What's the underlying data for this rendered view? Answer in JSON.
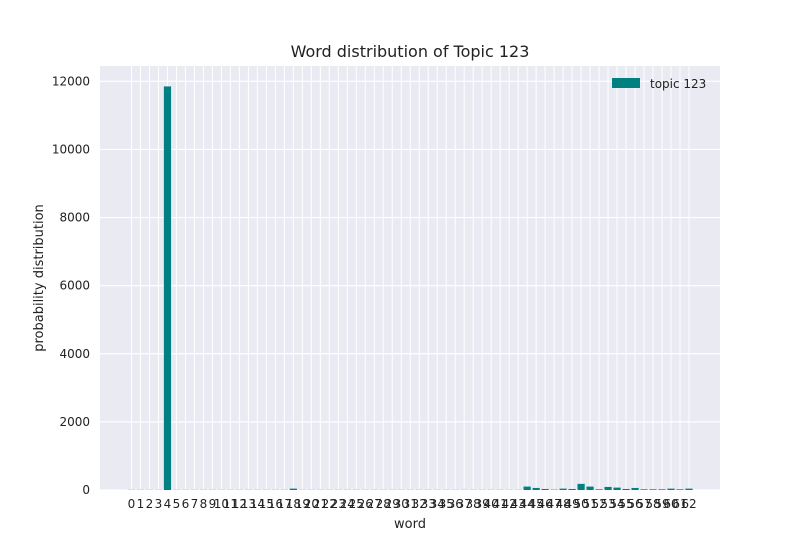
{
  "chart_data": {
    "type": "bar",
    "title": "Word distribution of Topic 123",
    "xlabel": "word",
    "ylabel": "probability distribution",
    "categories": [
      "0",
      "1",
      "2",
      "3",
      "4",
      "5",
      "6",
      "7",
      "8",
      "9",
      "10",
      "11",
      "12",
      "13",
      "14",
      "15",
      "16",
      "17",
      "18",
      "19",
      "20",
      "21",
      "22",
      "23",
      "24",
      "25",
      "26",
      "27",
      "28",
      "29",
      "30",
      "31",
      "32",
      "33",
      "34",
      "35",
      "36",
      "37",
      "38",
      "39",
      "40",
      "41",
      "42",
      "43",
      "44",
      "45",
      "46",
      "47",
      "48",
      "49",
      "50",
      "51",
      "52",
      "53",
      "54",
      "55",
      "56",
      "57",
      "58",
      "59",
      "60",
      "61",
      "62"
    ],
    "series": [
      {
        "name": "topic 123",
        "color": "#008080",
        "values": [
          5,
          5,
          5,
          5,
          11850,
          5,
          5,
          5,
          5,
          5,
          5,
          5,
          5,
          5,
          5,
          5,
          5,
          5,
          40,
          5,
          5,
          5,
          5,
          5,
          5,
          5,
          5,
          5,
          5,
          5,
          5,
          5,
          5,
          5,
          5,
          5,
          5,
          5,
          5,
          5,
          5,
          5,
          5,
          5,
          100,
          60,
          30,
          10,
          40,
          30,
          180,
          100,
          20,
          90,
          70,
          30,
          60,
          20,
          20,
          20,
          40,
          20,
          40
        ]
      }
    ],
    "yticks": [
      0,
      2000,
      4000,
      6000,
      8000,
      10000,
      12000
    ],
    "ylim": [
      0,
      12450
    ],
    "grid": true,
    "legend_position": "top-right",
    "style": {
      "background": "#EAEAF2",
      "grid_color": "#ffffff"
    }
  }
}
